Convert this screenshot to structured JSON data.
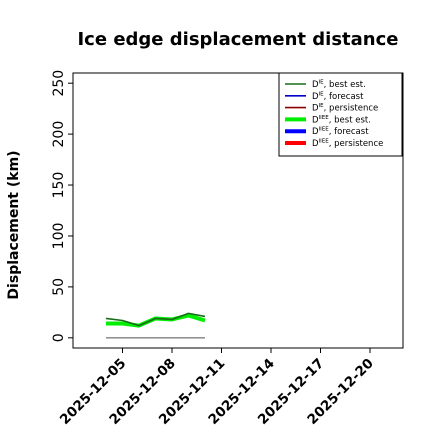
{
  "chart_data": {
    "type": "line",
    "title": "Ice edge displacement distance",
    "xlabel": "",
    "ylabel": "Displacement (km)",
    "ylim": [
      -10,
      260
    ],
    "yticks": [
      0,
      50,
      100,
      150,
      200,
      250
    ],
    "xlim": [
      "2025-12-02",
      "2025-12-22"
    ],
    "xticks": [
      "2025-12-05",
      "2025-12-08",
      "2025-12-11",
      "2025-12-14",
      "2025-12-17",
      "2025-12-20"
    ],
    "highlight_tick": "2025-12-11",
    "highlight_color": "#1a7a1a",
    "grid": false,
    "legend_position": "top-right",
    "series": [
      {
        "name": "D^IE, best est.",
        "legend_main": "D",
        "legend_sup": "IE",
        "legend_rest": ", best est.",
        "color": "#1a6b1a",
        "linewidth": 1.6,
        "x": [
          "2025-12-04",
          "2025-12-05",
          "2025-12-06",
          "2025-12-07",
          "2025-12-08",
          "2025-12-09",
          "2025-12-10"
        ],
        "values": [
          19,
          17,
          12,
          19,
          18,
          24,
          21
        ]
      },
      {
        "name": "D^IE, forecast",
        "legend_main": "D",
        "legend_sup": "IE",
        "legend_rest": ", forecast",
        "color": "#0000cc",
        "linewidth": 1.6,
        "x": [],
        "values": []
      },
      {
        "name": "D^IE, persistence",
        "legend_main": "D",
        "legend_sup": "IE",
        "legend_rest": ", persistence",
        "color": "#8b0000",
        "linewidth": 1.4,
        "x": [],
        "values": []
      },
      {
        "name": "D^IIEE, best est.",
        "legend_main": "D",
        "legend_sup": "IIEE",
        "legend_rest": ", best est.",
        "color": "#00ee00",
        "linewidth": 4,
        "x": [
          "2025-12-04",
          "2025-12-05",
          "2025-12-06",
          "2025-12-07",
          "2025-12-08",
          "2025-12-09",
          "2025-12-10"
        ],
        "values": [
          14,
          14,
          12,
          19,
          18,
          22,
          17
        ]
      },
      {
        "name": "D^IIEE, forecast",
        "legend_main": "D",
        "legend_sup": "IIEE",
        "legend_rest": ", forecast",
        "color": "#0000ff",
        "linewidth": 4,
        "x": [],
        "values": []
      },
      {
        "name": "D^IIEE, persistence",
        "legend_main": "D",
        "legend_sup": "IIEE",
        "legend_rest": ", persistence",
        "color": "#ff0000",
        "linewidth": 4,
        "x": [],
        "values": []
      }
    ],
    "reference_lines": [
      {
        "name": "zero",
        "color": "#808080",
        "x": [
          "2025-12-04",
          "2025-12-10"
        ],
        "values": [
          0,
          0
        ]
      }
    ]
  }
}
